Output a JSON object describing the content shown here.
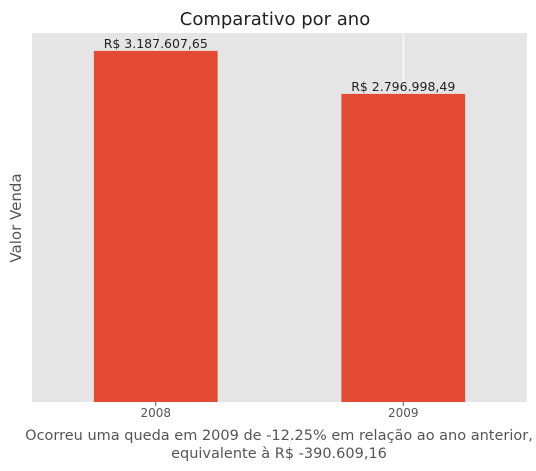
{
  "chart_data": {
    "type": "bar",
    "title": "Comparativo por ano",
    "xlabel": "",
    "ylabel": "Valor Venda",
    "categories": [
      "2008",
      "2009"
    ],
    "values": [
      3187607.65,
      2796998.49
    ],
    "data_labels": [
      "R$ 3.187.607,65",
      "R$ 2.796.998,49"
    ],
    "ylim": [
      0,
      3350000
    ],
    "y_ticks_visible": false,
    "grid": true,
    "legend": "none",
    "bar_color": "#E24A33",
    "background_color": "#E5E5E5",
    "caption": [
      "Ocorreu uma queda em 2009 de -12.25% em relação ao ano anterior,",
      "equivalente à R$ -390.609,16"
    ]
  }
}
